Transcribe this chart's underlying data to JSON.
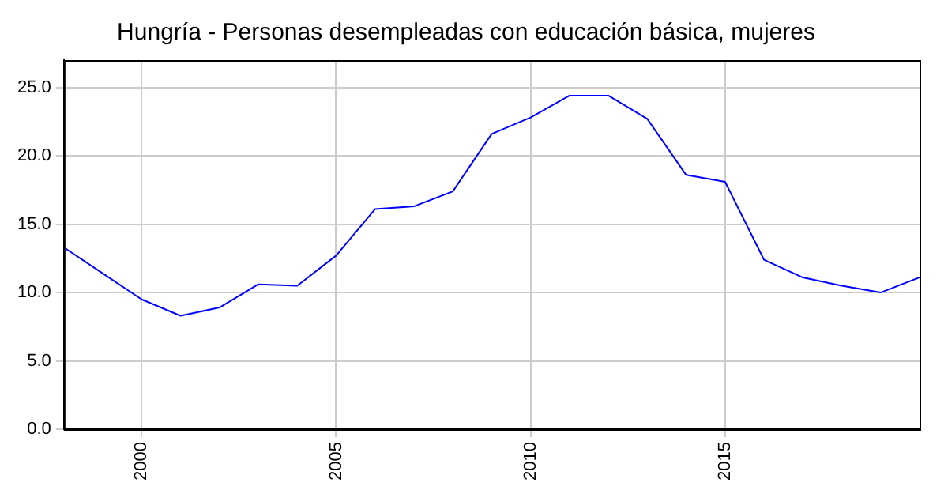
{
  "chart_data": {
    "type": "line",
    "title": "Hungría - Personas desempleadas con educación básica, mujeres",
    "x": [
      1998,
      1999,
      2000,
      2001,
      2002,
      2003,
      2004,
      2005,
      2006,
      2007,
      2008,
      2009,
      2010,
      2011,
      2012,
      2013,
      2014,
      2015,
      2016,
      2017,
      2018,
      2019,
      2020
    ],
    "series": [
      {
        "color": "#0000ff",
        "values": [
          13.3,
          11.4,
          9.5,
          8.3,
          8.9,
          10.6,
          10.5,
          12.7,
          16.1,
          16.3,
          17.4,
          21.6,
          22.8,
          24.4,
          24.4,
          22.7,
          18.6,
          18.1,
          12.4,
          11.1,
          10.5,
          10.0,
          11.1
        ]
      }
    ],
    "xlim": [
      1998,
      2020
    ],
    "xticks": [
      2000,
      2005,
      2010,
      2015
    ],
    "ylim": [
      0,
      27
    ],
    "yticks": [
      {
        "value": 0,
        "label": "0.0"
      },
      {
        "value": 5,
        "label": "5.0"
      },
      {
        "value": 10,
        "label": "10.0"
      },
      {
        "value": 15,
        "label": "15.0"
      },
      {
        "value": 20,
        "label": "20.0"
      },
      {
        "value": 25,
        "label": "25.0"
      }
    ],
    "grid": true,
    "legend": false,
    "marker": "none",
    "line_style": "solid"
  }
}
